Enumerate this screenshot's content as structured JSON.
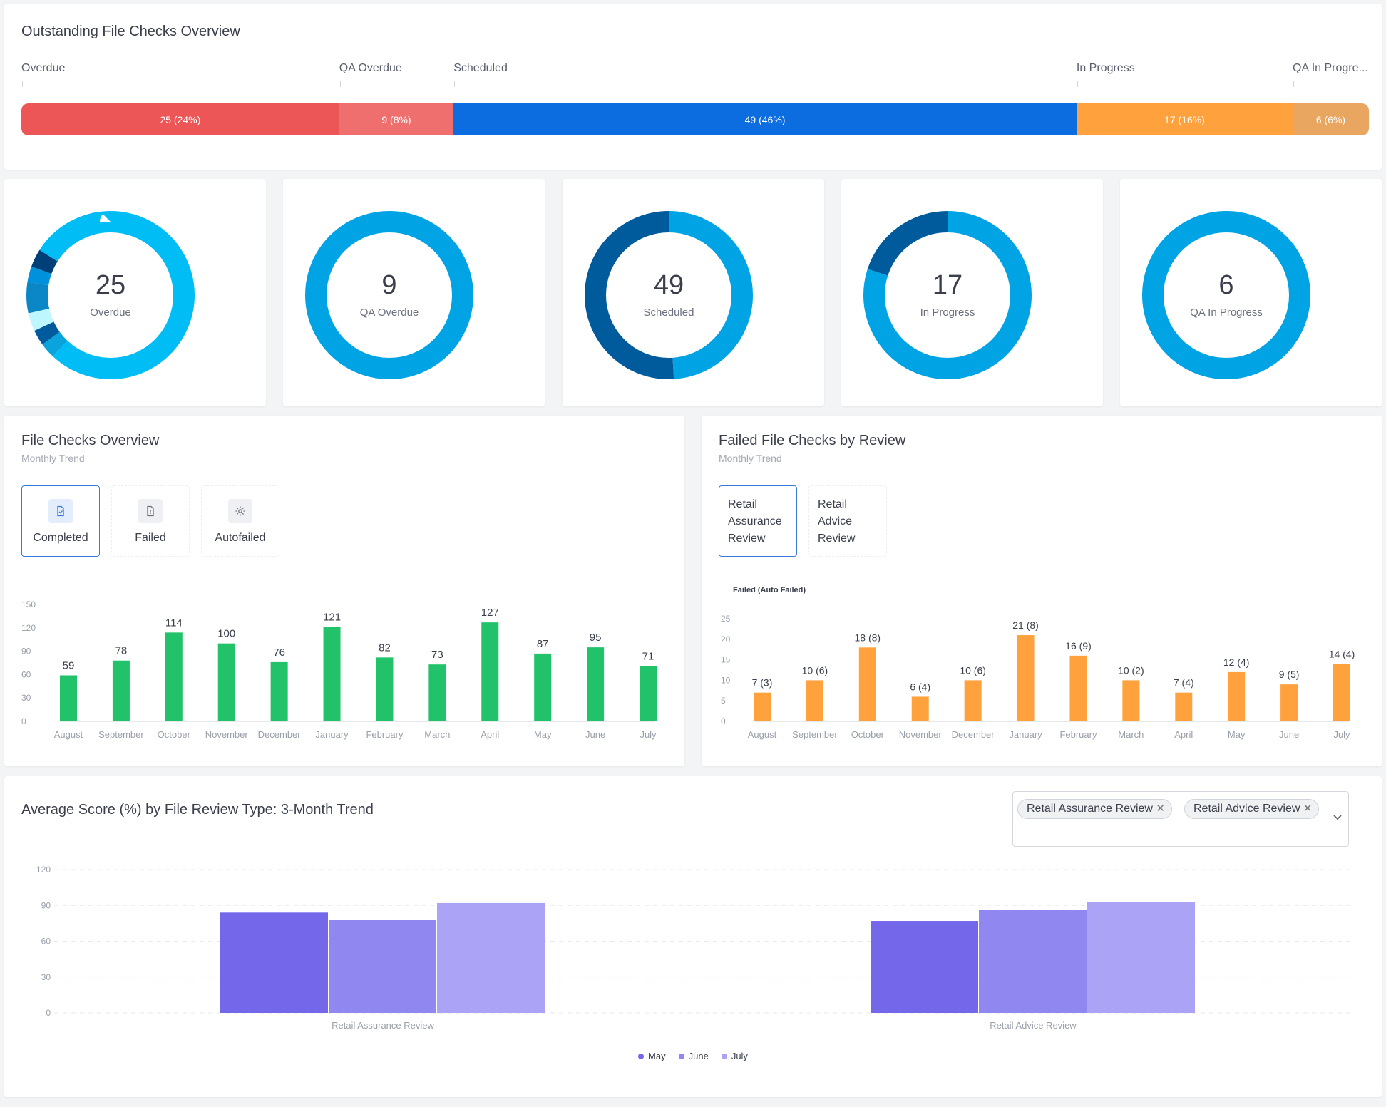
{
  "outstanding": {
    "title": "Outstanding File Checks Overview",
    "segments": [
      {
        "label": "Overdue",
        "text": "25 (24%)",
        "value": 25,
        "color": "#ec5656"
      },
      {
        "label": "QA Overdue",
        "text": "9 (8%)",
        "value": 9,
        "color": "#ef6f6f"
      },
      {
        "label": "Scheduled",
        "text": "49 (46%)",
        "value": 49,
        "color": "#0c6de1"
      },
      {
        "label": "In Progress",
        "text": "17 (16%)",
        "value": 17,
        "color": "#ffa23d"
      },
      {
        "label": "QA In Progre...",
        "text": "6 (6%)",
        "value": 6,
        "color": "#e9a660"
      }
    ]
  },
  "donuts": [
    {
      "number": "25",
      "label": "Overdue",
      "slices": [
        {
          "value": 62,
          "color": "#00bdf5"
        },
        {
          "value": 3,
          "color": "#0aa3dc"
        },
        {
          "value": 3,
          "color": "#005b9c"
        },
        {
          "value": 3.5,
          "color": "#bff7ff"
        },
        {
          "value": 6,
          "color": "#0b86c6"
        },
        {
          "value": 3,
          "color": "#0091dc"
        },
        {
          "value": 3.5,
          "color": "#003f78"
        },
        {
          "value": 16,
          "color": "#00bdf5"
        }
      ]
    },
    {
      "number": "9",
      "label": "QA Overdue",
      "slices": [
        {
          "value": 100,
          "color": "#00a4e4"
        }
      ]
    },
    {
      "number": "49",
      "label": "Scheduled",
      "slices": [
        {
          "value": 49,
          "color": "#00a4e4"
        },
        {
          "value": 51,
          "color": "#005b9c"
        }
      ]
    },
    {
      "number": "17",
      "label": "In Progress",
      "slices": [
        {
          "value": 80,
          "color": "#00a4e4"
        },
        {
          "value": 20,
          "color": "#005b9c"
        }
      ]
    },
    {
      "number": "6",
      "label": "QA In Progress",
      "slices": [
        {
          "value": 100,
          "color": "#00a4e4"
        }
      ]
    }
  ],
  "file_checks": {
    "title": "File Checks Overview",
    "subtitle": "Monthly Trend",
    "tabs": [
      {
        "label": "Completed",
        "icon": "file-check-icon",
        "active": true
      },
      {
        "label": "Failed",
        "icon": "file-alert-icon",
        "active": false
      },
      {
        "label": "Autofailed",
        "icon": "gear-icon",
        "active": false
      }
    ]
  },
  "failed_checks": {
    "title": "Failed File Checks by Review",
    "subtitle": "Monthly Trend",
    "tabs": [
      {
        "label": "Retail Assurance Review",
        "active": true
      },
      {
        "label": "Retail Advice Review",
        "active": false
      }
    ]
  },
  "avg_score": {
    "title": "Average Score (%) by File Review Type: 3-Month Trend",
    "chips": [
      "Retail Assurance Review",
      "Retail Advice Review"
    ]
  },
  "chart_data": [
    {
      "type": "bar",
      "categories": [
        "August",
        "September",
        "October",
        "November",
        "December",
        "January",
        "February",
        "March",
        "April",
        "May",
        "June",
        "July"
      ],
      "values": [
        59,
        78,
        114,
        100,
        76,
        121,
        82,
        73,
        127,
        87,
        95,
        71
      ],
      "data_labels": [
        "59",
        "78",
        "114",
        "100",
        "76",
        "121",
        "82",
        "73",
        "127",
        "87",
        "95",
        "71"
      ],
      "yticks": [
        "0",
        "30",
        "60",
        "90",
        "120",
        "150"
      ],
      "ylim": [
        0,
        150
      ],
      "color": "#22c26b"
    },
    {
      "type": "bar",
      "title": "Failed (Auto Failed)",
      "categories": [
        "August",
        "September",
        "October",
        "November",
        "December",
        "January",
        "February",
        "March",
        "April",
        "May",
        "June",
        "July"
      ],
      "values": [
        7,
        10,
        18,
        6,
        10,
        21,
        16,
        10,
        7,
        12,
        9,
        14
      ],
      "auto_failed": [
        3,
        6,
        8,
        4,
        6,
        8,
        9,
        2,
        4,
        4,
        5,
        4
      ],
      "data_labels": [
        "7 (3)",
        "10 (6)",
        "18 (8)",
        "6 (4)",
        "10 (6)",
        "21 (8)",
        "16 (9)",
        "10 (2)",
        "7 (4)",
        "12 (4)",
        "9 (5)",
        "14 (4)"
      ],
      "yticks": [
        "0",
        "5",
        "10",
        "15",
        "20",
        "25"
      ],
      "ylim": [
        0,
        25
      ],
      "color": "#ffa23d"
    },
    {
      "type": "bar",
      "categories": [
        "Retail Assurance Review",
        "Retail Advice Review"
      ],
      "series": [
        {
          "name": "May",
          "values": [
            84,
            77
          ],
          "color": "#7567ea"
        },
        {
          "name": "June",
          "values": [
            78,
            86
          ],
          "color": "#9187f1"
        },
        {
          "name": "July",
          "values": [
            92,
            93
          ],
          "color": "#aba3f6"
        }
      ],
      "yticks": [
        "0",
        "30",
        "60",
        "90",
        "120"
      ],
      "ylim": [
        0,
        120
      ],
      "grid": true,
      "legend": "bottom"
    }
  ]
}
